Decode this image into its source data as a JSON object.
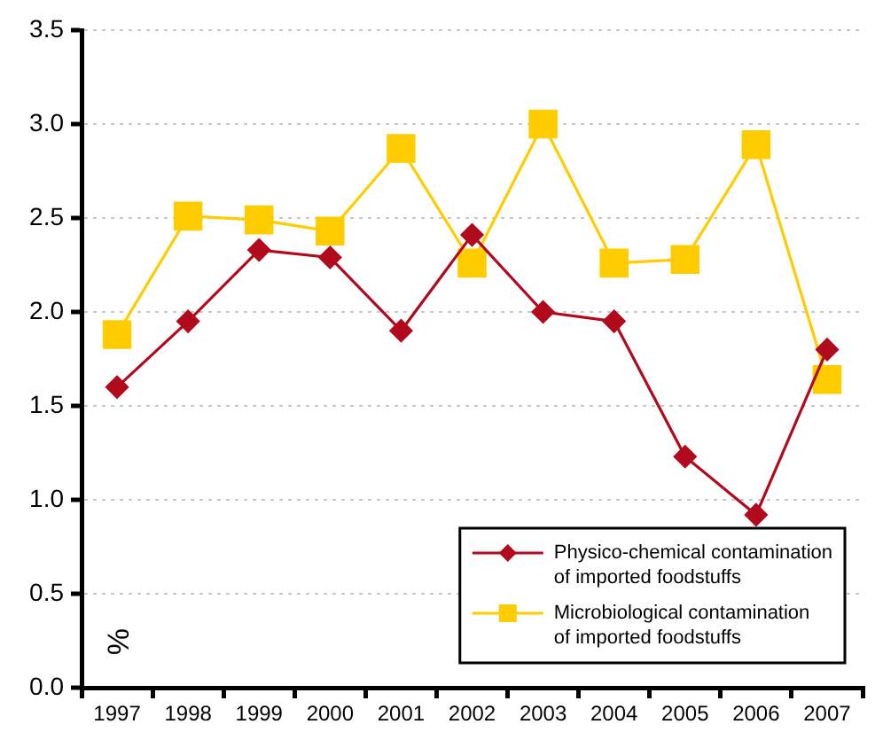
{
  "chart_data": {
    "type": "line",
    "ylabel": "%",
    "categories": [
      "1997",
      "1998",
      "1999",
      "2000",
      "2001",
      "2002",
      "2003",
      "2004",
      "2005",
      "2006",
      "2007"
    ],
    "series": [
      {
        "name": "Physico-chemical contamination of imported foodstuffs",
        "color": "#b00a1c",
        "marker": "diamond",
        "values": [
          1.6,
          1.95,
          2.33,
          2.29,
          1.9,
          2.41,
          2.0,
          1.95,
          1.23,
          0.92,
          1.8
        ]
      },
      {
        "name": "Microbiological contamination of imported foodstuffs",
        "color": "#ffcc00",
        "marker": "square",
        "values": [
          1.88,
          2.51,
          2.49,
          2.43,
          2.87,
          2.26,
          3.0,
          2.26,
          2.28,
          2.89,
          1.64
        ]
      }
    ],
    "ylim": [
      0,
      3.5
    ],
    "yticks": [
      {
        "value": 0,
        "label": "0.0"
      },
      0.5,
      {
        "value": 1,
        "label": "1.0"
      },
      1.5,
      {
        "value": 2,
        "label": "2.0"
      },
      2.5,
      {
        "value": 3,
        "label": "3.0"
      },
      3.5
    ],
    "grid": "y",
    "legend": "bottom right",
    "line_style": "solid"
  }
}
